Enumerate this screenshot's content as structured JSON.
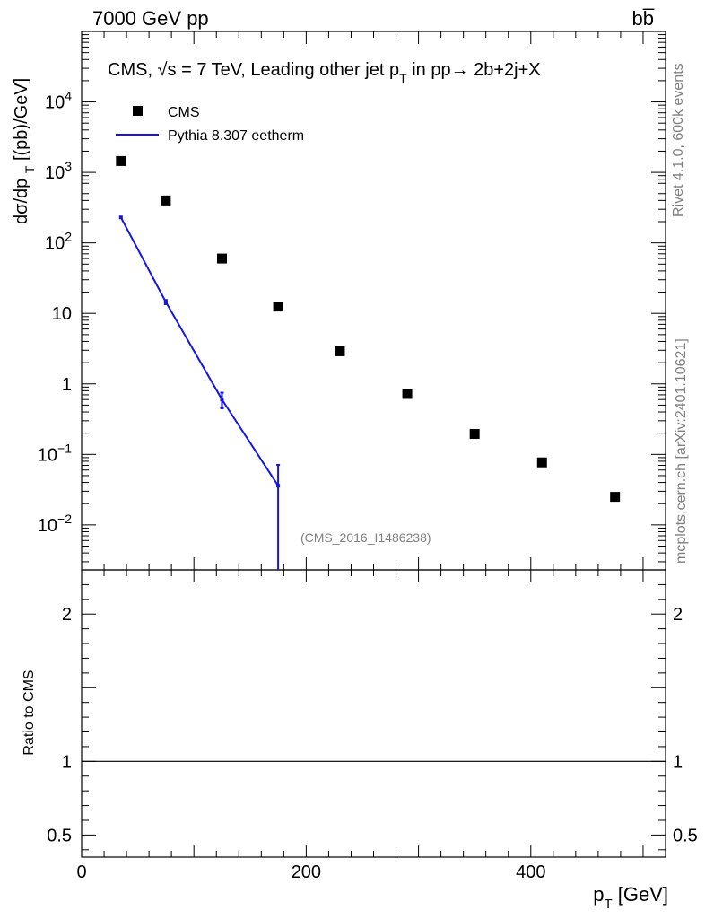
{
  "header": {
    "left": "7000 GeV pp",
    "right": "bb̅"
  },
  "side": {
    "rivet": "Rivet 4.1.0,  600k events",
    "mcplots": "mcplots.cern.ch [arXiv:2401.10621]"
  },
  "legend": {
    "data_label": "CMS",
    "mc_label": "Pythia 8.307 eetherm"
  },
  "colors": {
    "mc": "#1515e6",
    "data": "#000000"
  },
  "chart_data": {
    "type": "scatter",
    "title": "CMS, √s = 7 TeV, Leading other jet p_T in pp→ 2b+2j+X",
    "analysis_id": "(CMS_2016_I1486238)",
    "xlabel": "p_T [GeV]",
    "ylabel": "dσ/dp_T [(pb)/GeV]",
    "ratio_ylabel": "Ratio to CMS",
    "xlim": [
      0,
      520
    ],
    "ylim": [
      0.0023,
      100000
    ],
    "yscale": "log",
    "ratio_ylim": [
      0.35,
      2.3
    ],
    "x_ticks": [
      "0",
      "200",
      "400"
    ],
    "y_ticks": [
      "10^-2",
      "10^-1",
      "1",
      "10",
      "10^2",
      "10^3",
      "10^4"
    ],
    "ratio_ticks": [
      "0.5",
      "1",
      "2"
    ],
    "legend_position": "top-left",
    "series": [
      {
        "name": "CMS",
        "x": [
          35,
          75,
          125,
          175,
          230,
          290,
          350,
          410,
          475
        ],
        "y": [
          1450,
          400,
          60,
          12.5,
          2.9,
          0.72,
          0.195,
          0.077,
          0.025
        ]
      },
      {
        "name": "Pythia 8.307 eetherm",
        "x": [
          35,
          75,
          125,
          175
        ],
        "y": [
          230,
          14.5,
          0.6,
          0.036
        ],
        "yerr_low": [
          0,
          1,
          0.15,
          0.036
        ],
        "yerr_high": [
          0,
          1,
          0.15,
          0.035
        ]
      }
    ]
  }
}
